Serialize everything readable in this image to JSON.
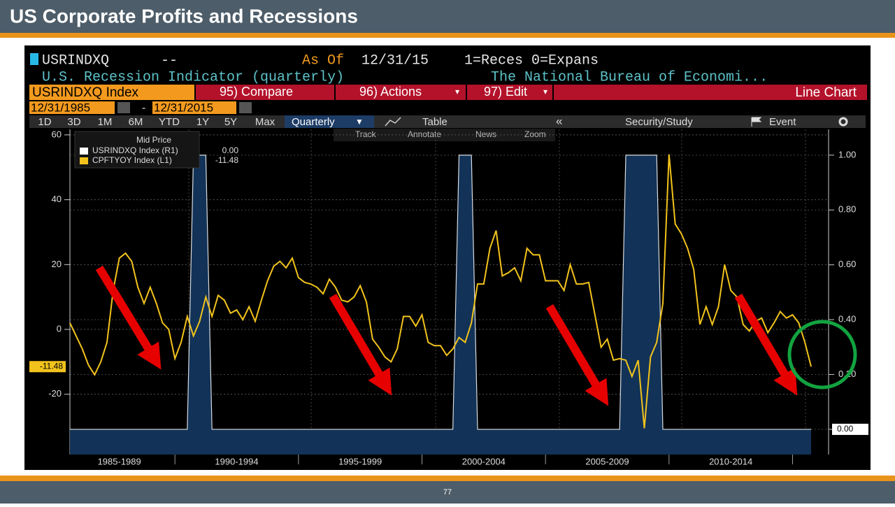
{
  "slide": {
    "title": "US Corporate Profits and Recessions",
    "page": "77"
  },
  "terminal": {
    "ticker": "USRINDXQ",
    "dash": "--",
    "as_of_label": "As Of",
    "as_of": "12/31/15",
    "key": "1=Reces 0=Expans",
    "description": "U.S. Recession Indicator (quarterly)",
    "source": "The National Bureau of Economi...",
    "security": "USRINDXQ Index",
    "menu": [
      "95) Compare",
      "96) Actions",
      "97) Edit"
    ],
    "view": "Line Chart",
    "start_date": "12/31/1985",
    "date_sep": "-",
    "end_date": "12/31/2015",
    "periods": [
      "1D",
      "3D",
      "1M",
      "6M",
      "YTD",
      "1Y",
      "5Y",
      "Max"
    ],
    "frequency": "Quarterly",
    "table": "Table",
    "security_study": "Security/Study",
    "event": "Event",
    "tools": [
      "Track",
      "Annotate",
      "News",
      "Zoom"
    ],
    "legend_title": "Mid Price"
  },
  "chart_data": {
    "type": "line",
    "categories": [
      null,
      null,
      null,
      null,
      null,
      null,
      null,
      null,
      "1985-1989",
      null,
      null,
      null,
      null,
      null,
      null,
      null,
      null,
      null,
      null,
      null,
      null,
      null,
      null,
      null,
      null,
      null,
      null,
      "1990-1994",
      null,
      null,
      null,
      null,
      null,
      null,
      null,
      null,
      null,
      null,
      null,
      null,
      null,
      null,
      null,
      null,
      null,
      null,
      null,
      "1995-1999",
      null,
      null,
      null,
      null,
      null,
      null,
      null,
      null,
      null,
      null,
      null,
      null,
      null,
      null,
      null,
      null,
      null,
      null,
      null,
      "2000-2004",
      null,
      null,
      null,
      null,
      null,
      null,
      null,
      null,
      null,
      null,
      null,
      null,
      null,
      null,
      null,
      null,
      null,
      null,
      null,
      "2005-2009",
      null,
      null,
      null,
      null,
      null,
      null,
      null,
      null,
      null,
      null,
      null,
      null,
      null,
      null,
      null,
      null,
      null,
      null,
      null,
      "2010-2014",
      null,
      null,
      null,
      null,
      null,
      null,
      null,
      null,
      null,
      null,
      null,
      null,
      null
    ],
    "series": [
      {
        "name": "USRINDXQ Index (R1)",
        "color": "#ffffff",
        "fill": "#123257",
        "style": "area",
        "axis": "y2",
        "last_label": "0.00",
        "values": [
          0,
          0,
          0,
          0,
          0,
          0,
          0,
          0,
          0,
          0,
          0,
          0,
          0,
          0,
          0,
          0,
          0,
          0,
          0,
          0,
          1,
          1,
          1,
          0,
          0,
          0,
          0,
          0,
          0,
          0,
          0,
          0,
          0,
          0,
          0,
          0,
          0,
          0,
          0,
          0,
          0,
          0,
          0,
          0,
          0,
          0,
          0,
          0,
          0,
          0,
          0,
          0,
          0,
          0,
          0,
          0,
          0,
          0,
          0,
          0,
          0,
          0,
          0,
          1,
          1,
          1,
          0,
          0,
          0,
          0,
          0,
          0,
          0,
          0,
          0,
          0,
          0,
          0,
          0,
          0,
          0,
          0,
          0,
          0,
          0,
          0,
          0,
          0,
          0,
          0,
          1,
          1,
          1,
          1,
          1,
          1,
          0,
          0,
          0,
          0,
          0,
          0,
          0,
          0,
          0,
          0,
          0,
          0,
          0,
          0,
          0,
          0,
          0,
          0,
          0,
          0,
          0,
          0,
          0,
          0,
          0
        ]
      },
      {
        "name": "CPFTYOY Index (L1)",
        "color": "#f2c31c",
        "style": "line",
        "last_label": "-11.48",
        "values": [
          2,
          -2,
          -6,
          -11,
          -14,
          -10,
          -4,
          12,
          22,
          23.5,
          21,
          13,
          8,
          13,
          8,
          2,
          0,
          -9,
          -4,
          4,
          -2,
          2.5,
          10,
          4,
          10.5,
          9,
          5,
          6,
          3,
          7,
          2.5,
          9,
          15,
          19.5,
          21,
          19,
          22,
          16,
          14.5,
          14,
          13,
          11,
          15.5,
          13,
          9,
          8.5,
          10,
          13.5,
          8.5,
          -3,
          -5.5,
          -8.5,
          -10,
          -6,
          4,
          4,
          1,
          4.5,
          -4,
          -5,
          -5,
          -8,
          -6,
          -2.5,
          -4,
          2,
          14,
          14,
          25,
          30.5,
          16.5,
          17.5,
          19,
          15,
          25,
          23,
          23,
          15,
          15,
          15,
          12,
          20,
          14,
          14,
          14.5,
          4.5,
          -5.5,
          -3,
          -9.5,
          -9,
          -9.5,
          -14.5,
          -9.5,
          -30.5,
          -8.5,
          -4,
          8,
          54,
          32.5,
          29.5,
          25,
          18.5,
          1.5,
          7,
          1.5,
          7,
          20,
          12,
          10,
          1.5,
          -0.5,
          2.5,
          3.5,
          -1,
          2,
          5.5,
          3.5,
          4.5,
          2,
          -4,
          -11.48
        ]
      }
    ],
    "ylim": [
      -38.6,
      61.7
    ],
    "yticks": [
      -20,
      0,
      20,
      40,
      60
    ],
    "y2lim": [
      -0.092,
      1.094
    ],
    "y2ticks": [
      {
        "value": 0,
        "label": "0.00"
      },
      {
        "value": 0.2,
        "label": "0.20"
      },
      {
        "value": 0.4,
        "label": "0.40"
      },
      {
        "value": 0.6,
        "label": "0.60"
      },
      {
        "value": 0.8,
        "label": "0.80"
      },
      {
        "value": 1,
        "label": "1.00"
      }
    ],
    "grid": true
  }
}
